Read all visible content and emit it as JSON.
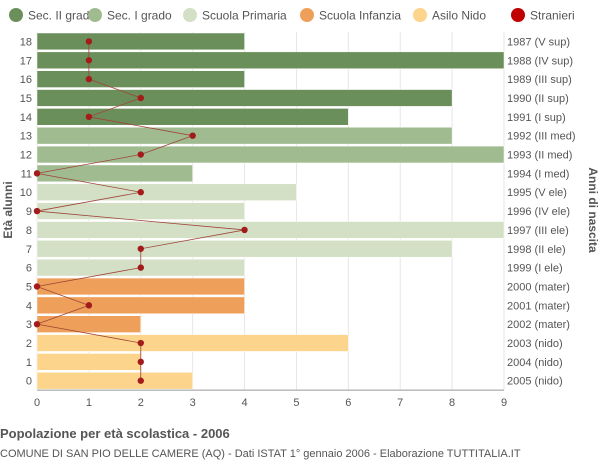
{
  "chart_data": {
    "type": "bar",
    "orientation": "horizontal",
    "title": "Popolazione per età scolastica - 2006",
    "subtitle": "COMUNE DI SAN PIO DELLE CAMERE (AQ) - Dati ISTAT 1° gennaio 2006 - Elaborazione TUTTITALIA.IT",
    "ylabel_left": "Età alunni",
    "ylabel_right": "Anni di nascita",
    "xlim": [
      0,
      9
    ],
    "x_ticks": [
      "0",
      "1",
      "2",
      "3",
      "4",
      "5",
      "6",
      "7",
      "8",
      "9"
    ],
    "grid": true,
    "legend_position": "top",
    "legend": [
      {
        "name": "Sec. II grado",
        "color": "#6b8f5a"
      },
      {
        "name": "Sec. I grado",
        "color": "#9fbb8f"
      },
      {
        "name": "Scuola Primaria",
        "color": "#d3e0c6"
      },
      {
        "name": "Scuola Infanzia",
        "color": "#eea05a"
      },
      {
        "name": "Asilo Nido",
        "color": "#fdd48b"
      },
      {
        "name": "Stranieri",
        "color": "#c00000"
      }
    ],
    "rows": [
      {
        "age": "18",
        "birth": "1987 (V sup)",
        "value": 4,
        "stranieri": 1,
        "group": 0
      },
      {
        "age": "17",
        "birth": "1988 (IV sup)",
        "value": 9,
        "stranieri": 1,
        "group": 0
      },
      {
        "age": "16",
        "birth": "1989 (III sup)",
        "value": 4,
        "stranieri": 1,
        "group": 0
      },
      {
        "age": "15",
        "birth": "1990 (II sup)",
        "value": 8,
        "stranieri": 2,
        "group": 0
      },
      {
        "age": "14",
        "birth": "1991 (I sup)",
        "value": 6,
        "stranieri": 1,
        "group": 0
      },
      {
        "age": "13",
        "birth": "1992 (III med)",
        "value": 8,
        "stranieri": 3,
        "group": 1
      },
      {
        "age": "12",
        "birth": "1993 (II med)",
        "value": 9,
        "stranieri": 2,
        "group": 1
      },
      {
        "age": "11",
        "birth": "1994 (I med)",
        "value": 3,
        "stranieri": 0,
        "group": 1
      },
      {
        "age": "10",
        "birth": "1995 (V ele)",
        "value": 5,
        "stranieri": 2,
        "group": 2
      },
      {
        "age": "9",
        "birth": "1996 (IV ele)",
        "value": 4,
        "stranieri": 0,
        "group": 2
      },
      {
        "age": "8",
        "birth": "1997 (III ele)",
        "value": 9,
        "stranieri": 4,
        "group": 2
      },
      {
        "age": "7",
        "birth": "1998 (II ele)",
        "value": 8,
        "stranieri": 2,
        "group": 2
      },
      {
        "age": "6",
        "birth": "1999 (I ele)",
        "value": 4,
        "stranieri": 2,
        "group": 2
      },
      {
        "age": "5",
        "birth": "2000 (mater)",
        "value": 4,
        "stranieri": 0,
        "group": 3
      },
      {
        "age": "4",
        "birth": "2001 (mater)",
        "value": 4,
        "stranieri": 1,
        "group": 3
      },
      {
        "age": "3",
        "birth": "2002 (mater)",
        "value": 2,
        "stranieri": 0,
        "group": 3
      },
      {
        "age": "2",
        "birth": "2003 (nido)",
        "value": 6,
        "stranieri": 2,
        "group": 4
      },
      {
        "age": "1",
        "birth": "2004 (nido)",
        "value": 2,
        "stranieri": 2,
        "group": 4
      },
      {
        "age": "0",
        "birth": "2005 (nido)",
        "value": 3,
        "stranieri": 2,
        "group": 4
      }
    ]
  }
}
